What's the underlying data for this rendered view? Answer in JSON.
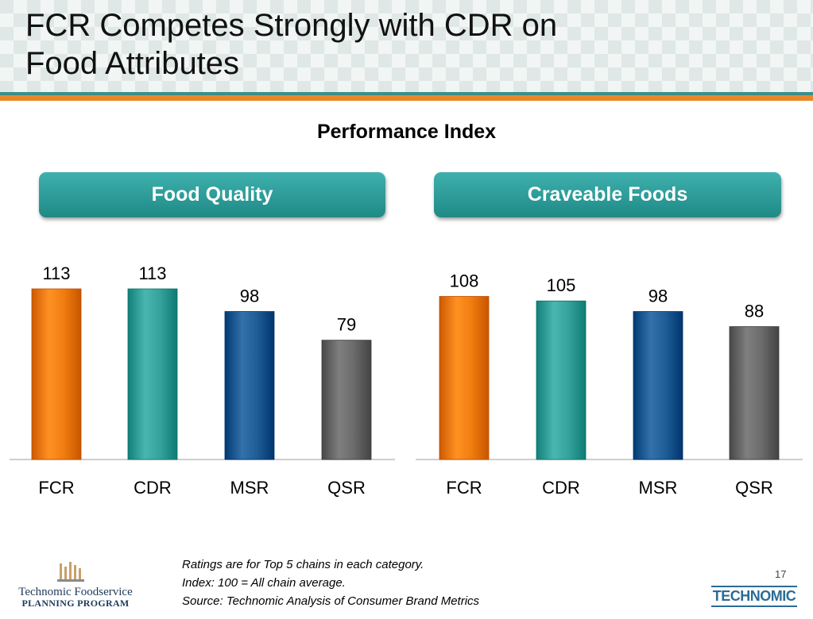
{
  "slide": {
    "title": "FCR Competes Strongly with CDR on\nFood Attributes",
    "page_number": "17"
  },
  "chart_data": [
    {
      "type": "bar",
      "title": "Food Quality",
      "categories": [
        "FCR",
        "CDR",
        "MSR",
        "QSR"
      ],
      "values": [
        113,
        113,
        98,
        79
      ],
      "colors": [
        "#f07d0f",
        "#35a39b",
        "#1f5d96",
        "#6b6b6b"
      ],
      "ylim": [
        0,
        125
      ],
      "grid": false,
      "legend": "none"
    },
    {
      "type": "bar",
      "title": "Craveable Foods",
      "categories": [
        "FCR",
        "CDR",
        "MSR",
        "QSR"
      ],
      "values": [
        108,
        105,
        98,
        88
      ],
      "colors": [
        "#f07d0f",
        "#35a39b",
        "#1f5d96",
        "#6b6b6b"
      ],
      "ylim": [
        0,
        125
      ],
      "grid": false,
      "legend": "none"
    }
  ],
  "shared_title": "Performance Index",
  "footnotes": {
    "line1": "Ratings are for Top 5 chains in each category.",
    "line2": "Index: 100 = All chain average.",
    "line3": "Source: Technomic Analysis of Consumer Brand Metrics"
  },
  "logos": {
    "left_line1": "Technomic Foodservice",
    "left_line2": "PLANNING PROGRAM",
    "right_text": "TECHNOMIC"
  },
  "icons": {
    "left_logo": "building-columns-icon"
  }
}
